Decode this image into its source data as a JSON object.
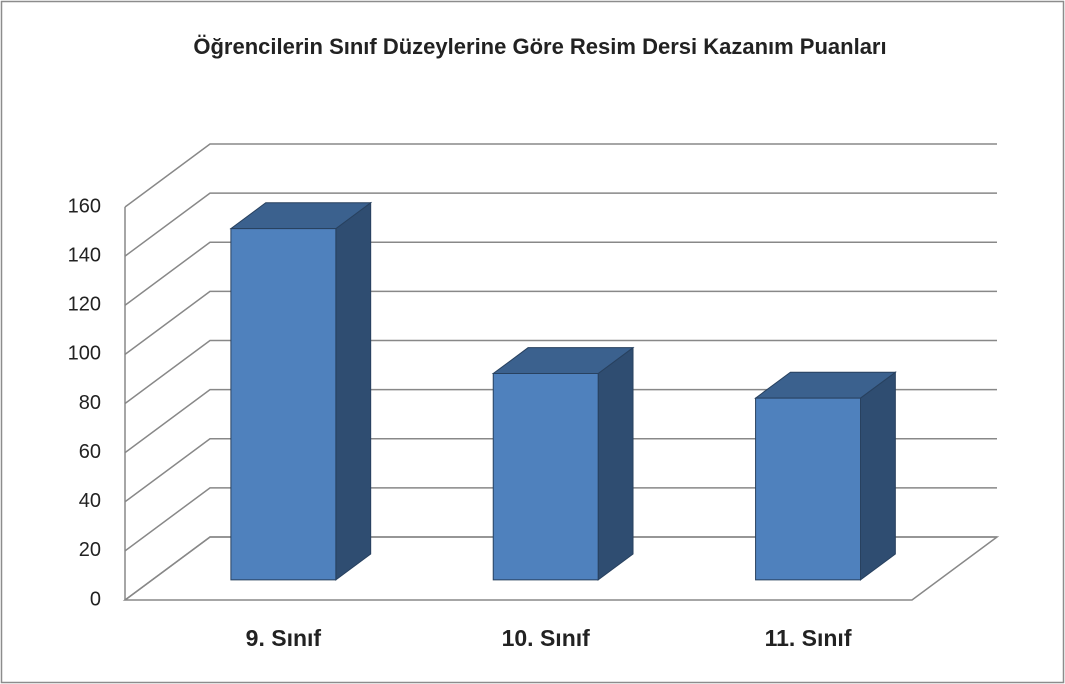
{
  "chart_data": {
    "type": "bar3d",
    "title": "Öğrencilerin Sınıf Düzeylerine Göre Resim Dersi Kazanım Puanları",
    "categories": [
      "9. Sınıf",
      "10. Sınıf",
      "11. Sınıf"
    ],
    "values": [
      143,
      84,
      74
    ],
    "color": "#4f81bd",
    "ylim": [
      0,
      160
    ],
    "yticks": [
      0,
      20,
      40,
      60,
      80,
      100,
      120,
      140,
      160
    ],
    "grid": true
  }
}
